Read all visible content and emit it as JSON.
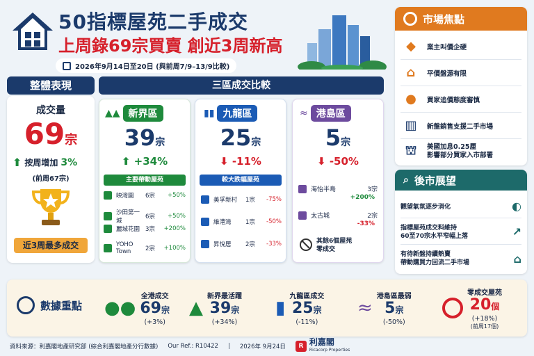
{
  "header": {
    "title": "50指標屋苑二手成交",
    "subtitle": "上周錄69宗買賣 創近3周新高",
    "date_range": "2026年9月14日至20日 (與前周7/9–13/9比較)"
  },
  "overall": {
    "header": "整體表現",
    "volume_label": "成交量",
    "volume_value": "69",
    "volume_unit": "宗",
    "change_label": "按周增加",
    "change_value": "3%",
    "previous": "(前周67宗)",
    "badge": "近3周最多成交"
  },
  "regions_header": "三區成交比較",
  "nt": {
    "name": "新界區",
    "value": "39",
    "unit": "宗",
    "change": "+34%",
    "list_title": "主要帶動屋苑",
    "items": [
      {
        "name": "映灣園",
        "count": "6宗",
        "change": "+50%"
      },
      {
        "name": "沙田第一城",
        "count": "6宗",
        "change": "+50%"
      },
      {
        "name": "麗城花園",
        "count": "3宗",
        "change": "+200%"
      },
      {
        "name": "YOHO Town",
        "count": "2宗",
        "change": "+100%"
      }
    ]
  },
  "kln": {
    "name": "九龍區",
    "value": "25",
    "unit": "宗",
    "change": "-11%",
    "list_title": "較大跌幅屋苑",
    "items": [
      {
        "name": "美孚新村",
        "count": "1宗",
        "change": "-75%"
      },
      {
        "name": "維港灣",
        "count": "1宗",
        "change": "-50%"
      },
      {
        "name": "昇悅居",
        "count": "2宗",
        "change": "-33%"
      }
    ]
  },
  "hki": {
    "name": "港島區",
    "value": "5",
    "unit": "宗",
    "change": "-50%",
    "items": [
      {
        "name": "海怡半島",
        "count": "3宗",
        "change": "+200%"
      },
      {
        "name": "太古城",
        "count": "2宗",
        "change": "-33%"
      }
    ],
    "zero_text_1": "其餘6個屋苑",
    "zero_text_2": "零成交"
  },
  "focus": {
    "header": "市場焦點",
    "items": [
      "業主叫價企硬",
      "平價盤源有限",
      "買家追價態度審慎",
      "新盤銷售支援二手市場",
      "美國加息0.25厘",
      "影響部分買家入市部署"
    ]
  },
  "outlook": {
    "header": "後市展望",
    "items": [
      "觀望氣氛逐步消化",
      "指標屋苑成交料維持",
      "60至70宗水平窄幅上落",
      "有待新盤持續熱賣",
      "帶動購買力回流二手市場"
    ]
  },
  "kpis": {
    "header": "數據重點",
    "items": [
      {
        "title": "全港成交",
        "value": "69",
        "unit": "宗",
        "change": "(+3%)"
      },
      {
        "title": "新界最活躍",
        "value": "39",
        "unit": "宗",
        "change": "(+34%)"
      },
      {
        "title": "九龍區成交",
        "value": "25",
        "unit": "宗",
        "change": "(-11%)"
      },
      {
        "title": "港島區最弱",
        "value": "5",
        "unit": "宗",
        "change": "(-50%)"
      },
      {
        "title": "零成交屋苑",
        "value": "20",
        "unit": "個",
        "change": "(+18%)",
        "note": "(前周17個)"
      }
    ]
  },
  "footer": {
    "source": "資料來源：利嘉閣地產研究部 (綜合利嘉閣地產分行數據)",
    "ref": "Our Ref.: R10422",
    "sep": "|",
    "date": "2026年 9月24日",
    "brand": "利嘉閣",
    "brand_en": "Ricacorp Properties"
  },
  "watermark": "am730",
  "colors": {
    "navy": "#1b3a6b",
    "red": "#d6202b",
    "green": "#1e8a3c",
    "blue": "#1b5bb5",
    "purple": "#6d4b9e",
    "orange": "#e07a1f",
    "teal": "#1d6a6a"
  }
}
